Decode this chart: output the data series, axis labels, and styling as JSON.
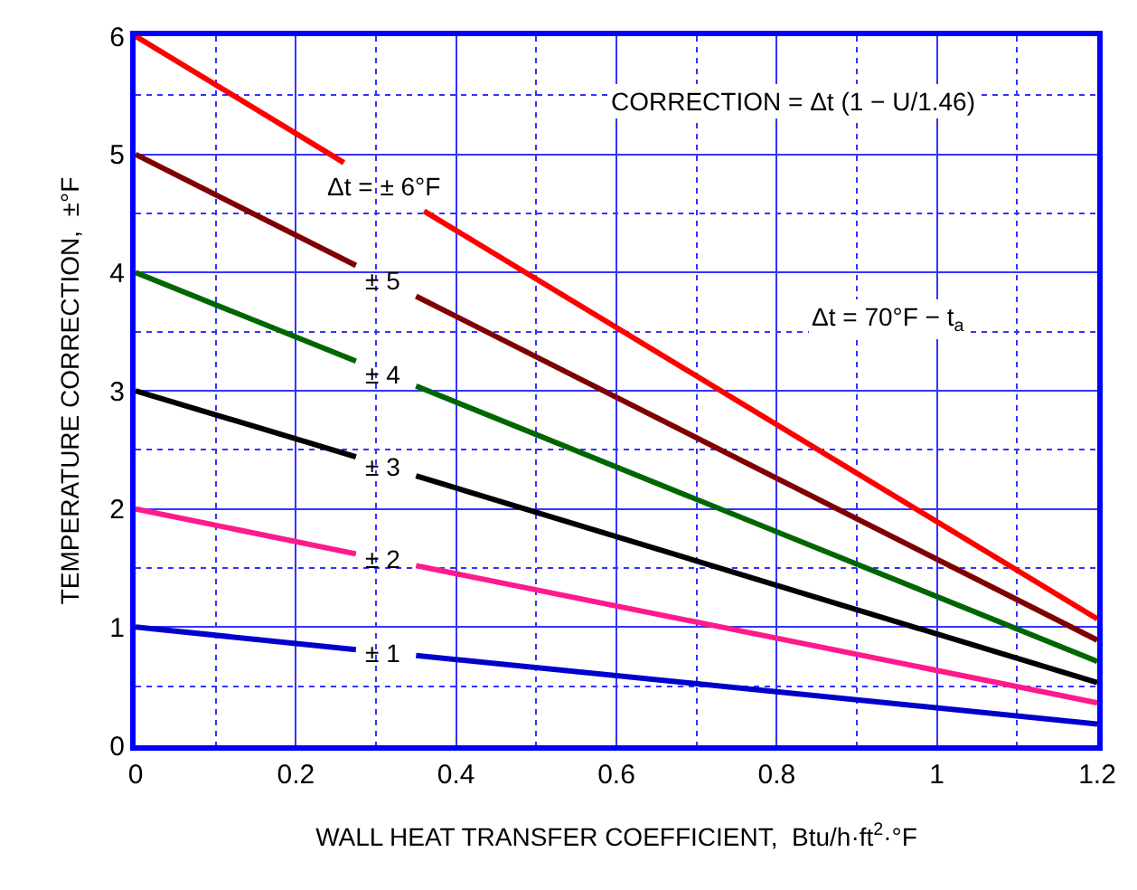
{
  "chart_data": {
    "type": "line",
    "xlabel": "WALL HEAT TRANSFER COEFFICIENT,  Btu/h·ft$^{2}$·°F",
    "ylabel": "TEMPERATURE CORRECTION,  ±°F",
    "xlim": [
      0,
      1.2
    ],
    "xticks": [
      0,
      {
        "value": 0.1,
        "label": null
      },
      0.2,
      {
        "value": 0.3,
        "label": null
      },
      0.4,
      {
        "value": 0.5,
        "label": null
      },
      0.6,
      {
        "value": 0.7,
        "label": null
      },
      0.8,
      {
        "value": 0.9,
        "label": null
      },
      1,
      {
        "value": 1.1,
        "label": null
      },
      1.2
    ],
    "ylim": [
      0,
      6
    ],
    "yticks": [
      0,
      {
        "value": 0.5,
        "label": null
      },
      1,
      {
        "value": 1.5,
        "label": null
      },
      2,
      {
        "value": 2.5,
        "label": null
      },
      3,
      {
        "value": 3.5,
        "label": null
      },
      4,
      {
        "value": 4.5,
        "label": null
      },
      5,
      {
        "value": 5.5,
        "label": null
      },
      6
    ],
    "grid": true,
    "legend": false,
    "marker": "none",
    "line_style": "solid",
    "series": [
      {
        "name": "Δt = ± 6°F",
        "color": "#ff0000",
        "x": [
          0,
          0.26,
          0.31,
          0.36,
          1.2
        ],
        "values": [
          6,
          4.93,
          null,
          4.52,
          1.07
        ]
      },
      {
        "name": "± 5",
        "color": "#800000",
        "x": [
          0,
          0.275,
          0.31,
          0.35,
          1.2
        ],
        "values": [
          5,
          4.06,
          null,
          3.8,
          0.89
        ]
      },
      {
        "name": "± 4",
        "color": "#006600",
        "x": [
          0,
          0.275,
          0.31,
          0.35,
          1.2
        ],
        "values": [
          4,
          3.25,
          null,
          3.04,
          0.71
        ]
      },
      {
        "name": "± 3",
        "color": "#000000",
        "x": [
          0,
          0.275,
          0.31,
          0.35,
          1.2
        ],
        "values": [
          3,
          2.44,
          null,
          2.28,
          0.53
        ]
      },
      {
        "name": "± 2",
        "color": "#ff1a8c",
        "x": [
          0,
          0.275,
          0.31,
          0.35,
          1.2
        ],
        "values": [
          2,
          1.62,
          null,
          1.52,
          0.36
        ]
      },
      {
        "name": "± 1",
        "color": "#0000cc",
        "x": [
          0,
          0.275,
          0.31,
          0.35,
          1.2
        ],
        "values": [
          1,
          0.81,
          null,
          0.76,
          0.18
        ]
      }
    ],
    "annotations": [
      "CORRECTION = Δt (1 − U/1.46)",
      "Δt = 70°F − t$_{a}$"
    ]
  }
}
